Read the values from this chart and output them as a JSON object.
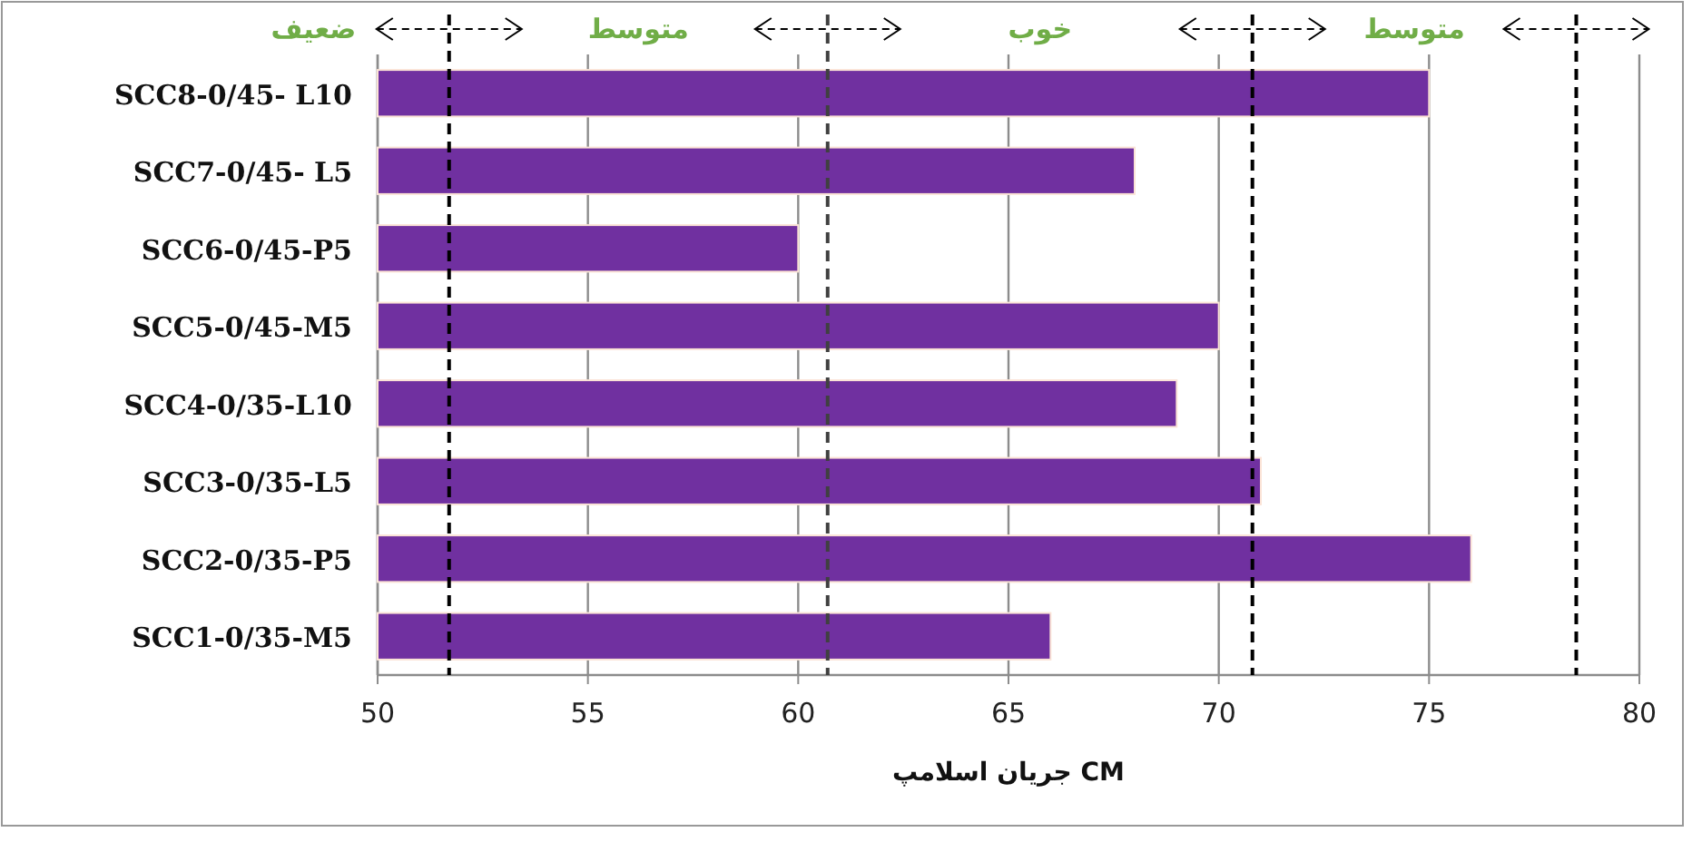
{
  "chart_data": {
    "type": "bar",
    "orientation": "horizontal",
    "categories": [
      "SCC8-0/45- L10",
      "SCC7-0/45- L5",
      "SCC6-0/45-P5",
      "SCC5-0/45-M5",
      "SCC4-0/35-L10",
      "SCC3-0/35-L5",
      "SCC2-0/35-P5",
      "SCC1-0/35-M5"
    ],
    "values": [
      75,
      68,
      60,
      70,
      69,
      71,
      76,
      66
    ],
    "color": "#7030a0",
    "xlim": [
      50,
      80
    ],
    "xticks": [
      50,
      55,
      60,
      65,
      70,
      75,
      80
    ],
    "xlabel": "جریان اسلامپ CM",
    "grid": "x",
    "ref_lines": [
      {
        "axis": "x",
        "value": 51.7,
        "color": "#000000",
        "line_style": "dashed"
      },
      {
        "axis": "x",
        "value": 60.7,
        "color": "#404040",
        "line_style": "dashed"
      },
      {
        "axis": "x",
        "value": 70.8,
        "color": "#000000",
        "line_style": "dashed"
      },
      {
        "axis": "x",
        "value": 78.5,
        "color": "#000000",
        "line_style": "dashed"
      }
    ],
    "annotations": [
      "ضعیف",
      "متوسط",
      "خوب",
      "متوسط"
    ]
  }
}
